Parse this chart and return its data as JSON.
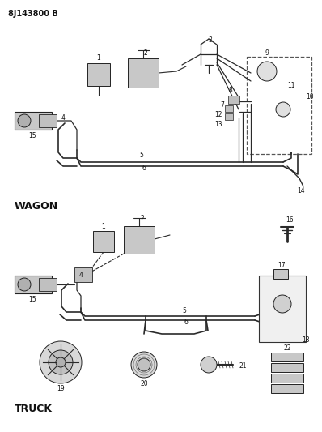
{
  "title": "8J143800 B",
  "bg_color": "#ffffff",
  "line_color": "#2a2a2a",
  "fig_width": 3.98,
  "fig_height": 5.33,
  "dpi": 100,
  "wagon_label": "WAGON",
  "truck_label": "TRUCK"
}
